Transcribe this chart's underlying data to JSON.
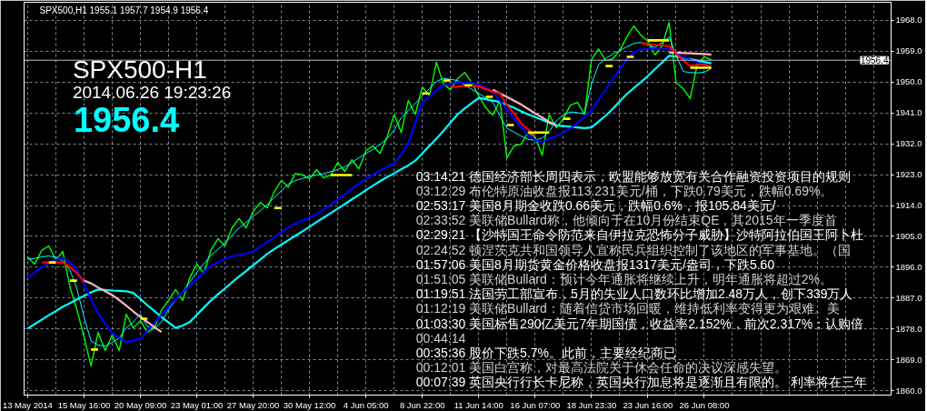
{
  "chart_data": {
    "type": "line",
    "title": "SPX500,H1 1955.1 1957.7 1954.9 1956.4",
    "line_style": "solid",
    "grid": true,
    "categories": [
      "13 May 2014",
      null,
      null,
      null,
      null,
      null,
      null,
      null,
      "15 May 16:00",
      null,
      null,
      null,
      null,
      null,
      null,
      null,
      "20 May 09:00",
      null,
      null,
      null,
      null,
      null,
      null,
      null,
      "23 May 01:00",
      null,
      null,
      null,
      null,
      null,
      null,
      null,
      "27 May 20:00",
      null,
      null,
      null,
      null,
      null,
      null,
      null,
      "30 May 12:00",
      null,
      null,
      null,
      null,
      null,
      null,
      null,
      "4 Jun 05:00",
      null,
      null,
      null,
      null,
      null,
      null,
      null,
      "8 Jun 22:00",
      null,
      null,
      null,
      null,
      null,
      null,
      null,
      "11 Jun 14:00",
      null,
      null,
      null,
      null,
      null,
      null,
      null,
      "16 Jun 07:00",
      null,
      null,
      null,
      null,
      null,
      null,
      null,
      "18 Jun 23:30",
      null,
      null,
      null,
      null,
      null,
      null,
      null,
      "23 Jun 16:00",
      null,
      null,
      null,
      null,
      null,
      null,
      null,
      "26 Jun 08:00",
      null,
      null,
      null,
      null,
      null,
      null,
      null,
      null,
      null,
      null,
      null,
      null,
      null,
      null,
      null,
      null,
      null,
      null,
      null,
      null,
      null,
      null,
      null,
      null,
      null,
      null
    ],
    "ylim": [
      1858.7,
      1973.3
    ],
    "yticks": [
      {
        "value": 1860,
        "label": "1860.0"
      },
      {
        "value": 1869,
        "label": "1869.0"
      },
      {
        "value": 1878,
        "label": "1878.0"
      },
      {
        "value": 1887,
        "label": "1887.0"
      },
      {
        "value": 1896,
        "label": "1896.0"
      },
      {
        "value": 1905,
        "label": "1905.0"
      },
      {
        "value": 1914,
        "label": "1914.0"
      },
      {
        "value": 1923,
        "label": "1923.0"
      },
      {
        "value": 1932,
        "label": "1932.0"
      },
      {
        "value": 1941,
        "label": "1941.0"
      },
      {
        "value": 1950,
        "label": "1950.0"
      },
      {
        "value": 1959,
        "label": "1959.0"
      },
      {
        "value": 1968,
        "label": "1968.0"
      }
    ],
    "ref_lines": [
      {
        "axis": "y",
        "value": 1956.4,
        "label": "1956.4",
        "color": "#b4bcc8",
        "line_style": "solid"
      }
    ],
    "annotations": [
      "SPX500-H1",
      "2014.06.26 19:23:26",
      "1956.4",
      "03:14:21 德国经济部长周四表示，欧盟能够放宽有关合作融资投资项目的规则",
      "03:12:29 布伦特原油收盘报113.231美元/桶，下跌0.79美元，跌幅0.69%。",
      "02:53:17 美国8月期金收跌0.66美元，跌幅0.6%，报105.84美元/",
      "02:33:52 美联储Bullard称，他倾向于在10月份结束QE，其2015年一季度首",
      "02:29:21 【沙特国王命令防范来自伊拉克恐怖分子威胁】沙特阿拉伯国王阿卜杜",
      "02:24:52 顿涅茨克共和国领导人宣称民兵组织控制了该地区的军事基地。（国",
      "01:57:06 美国8月期货黄金价格收盘报1317美元/盎司，下跌5.60",
      "01:51:05 美联储Bullard：预计今年通胀将继续上升，明年通胀将超过2%。",
      "01:19:51 法国劳工部宣布，5月的失业人口数环比增加2.48万人，创下339万人",
      "01:12:19 美联储Bullard：随着信贷市场回暖，维持低利率变得更为艰难。美",
      "01:03:30 美国标售290亿美元7年期国债，收益率2.152%，前次2.317%；认购倍",
      "00:44:14",
      "00:35:36 股价下跌5.7%。此前，主要经纪商已",
      "00:12:01 美国白宫称，对最高法院关于休会任命的决议深感失望。",
      "00:07:39 英国央行行长卡尼称，英国央行加息将是逐渐且有限的。 利率将在三年"
    ],
    "series": [
      {
        "color": "#00ff00",
        "values": [
          1899.0,
          1896.9,
          1900.9,
          1902.2,
          1898.2,
          1900.6,
          1890.3,
          1883.6,
          1875.7,
          1867.2,
          1877.0,
          1871.7,
          1876.2,
          1871.7,
          1882.3,
          1878.3,
          1880.4,
          1877.0,
          1878.3,
          1883.6,
          1886.3,
          1889.5,
          1886.3,
          1892.9,
          1896.9,
          1894.2,
          1900.9,
          1904.3,
          1902.2,
          1907.5,
          1910.2,
          1907.5,
          1912.3,
          1914.9,
          1913.3,
          1918.1,
          1921.3,
          1919.4,
          1923.4,
          1922.9,
          1921.8,
          1924.5,
          1922.1,
          1922.9,
          1926.6,
          1923.9,
          1927.4,
          1924.7,
          1930.0,
          1931.4,
          1929.2,
          1934.0,
          1940.6,
          1935.3,
          1944.6,
          1940.6,
          1948.6,
          1946.0,
          1955.8,
          1949.4,
          1947.8,
          1951.0,
          1952.8,
          1949.9,
          1946.0,
          1942.5,
          1940.4,
          1944.6,
          1927.9,
          1931.4,
          1931.9,
          1935.3,
          1934.0,
          1928.7,
          1940.6,
          1936.7,
          1939.3,
          1943.3,
          1944.1,
          1940.6,
          1956.6,
          1959.7,
          1956.3,
          1956.8,
          1959.2,
          1963.2,
          1966.4,
          1963.7,
          1961.9,
          1957.9,
          1960.5,
          1967.4,
          1949.9,
          1948.1,
          1945.2,
          1955.2,
          1957.4,
          1956.4,
          null,
          null,
          null,
          null,
          null,
          null,
          null,
          null,
          null,
          null,
          null,
          null,
          null,
          null,
          null,
          null,
          null,
          null,
          null,
          null,
          null,
          null,
          null,
          null,
          null
        ]
      },
      {
        "color": "#00ffff",
        "values": [
          1898.3,
          1898.6,
          1899.0,
          1899.3,
          1898.9,
          1897.8,
          1895.2,
          1889.7,
          1881.4,
          1874.5,
          1873.3,
          1873.0,
          1874.1,
          1875.3,
          1878.3,
          1880.1,
          1882.3,
          1878.7,
          1878.1,
          1880.1,
          1883.7,
          1886.5,
          1888.9,
          1891.6,
          1894.5,
          1897.0,
          1899.5,
          1901.2,
          1903.0,
          1905.3,
          1907.4,
          1909.1,
          1910.8,
          1912.5,
          1914.3,
          1916.4,
          1918.3,
          1920.3,
          1921.3,
          1921.9,
          1922.5,
          1922.9,
          1923.3,
          1923.9,
          1924.5,
          1925.3,
          1926.6,
          1927.9,
          1929.2,
          1930.4,
          1931.8,
          1933.5,
          1936.0,
          1939.6,
          1941.7,
          1943.8,
          1946.0,
          1948.1,
          1950.2,
          1951.1,
          1950.8,
          1950.5,
          1949.2,
          1947.9,
          1946.7,
          1945.4,
          1944.1,
          1940.1,
          1936.6,
          1935.4,
          1934.3,
          1933.3,
          1933.0,
          1933.7,
          1935.6,
          1938.7,
          1940.4,
          1941.3,
          1941.1,
          1940.7,
          1949.5,
          1955.1,
          1956.9,
          1958.2,
          1959.2,
          1960.3,
          1961.3,
          1961.6,
          1960.9,
          1960.1,
          1961.5,
          1963.2,
          1957.9,
          1953.1,
          1952.8,
          1952.7,
          1952.9,
          1954.0,
          null,
          null,
          null,
          null,
          null,
          null,
          null,
          null,
          null,
          null,
          null,
          null,
          null,
          null,
          null,
          null,
          null,
          null,
          null,
          null,
          null,
          null,
          null,
          null,
          null
        ]
      },
      {
        "color": "#00ffff",
        "values": [
          1878.1,
          1879.4,
          1880.7,
          1882.0,
          1883.2,
          1884.5,
          1885.5,
          1886.6,
          1887.6,
          1888.7,
          1889.5,
          1889.4,
          1889.2,
          1889.1,
          1889.0,
          1888.5,
          1886.7,
          1884.9,
          1883.2,
          1881.5,
          1879.9,
          1878.3,
          1879.0,
          1880.0,
          1882.1,
          1884.2,
          1886.3,
          1888.1,
          1889.8,
          1891.6,
          1893.3,
          1894.9,
          1896.6,
          1898.2,
          1899.9,
          1901.3,
          1902.6,
          1903.9,
          1905.2,
          1906.5,
          1907.8,
          1909.2,
          1910.5,
          1911.8,
          1913.1,
          1914.4,
          1915.8,
          1917.1,
          1918.5,
          1919.8,
          1921.1,
          1922.3,
          1923.4,
          1924.6,
          1925.7,
          1927.1,
          1929.2,
          1931.4,
          1933.5,
          1935.8,
          1938.2,
          1940.6,
          1942.3,
          1943.9,
          1945.4,
          1945.0,
          1944.6,
          1944.2,
          1943.4,
          1942.5,
          1941.5,
          1940.6,
          1939.8,
          1939.0,
          1938.1,
          1937.4,
          1937.2,
          1937.0,
          1936.8,
          1936.6,
          1936.8,
          1938.5,
          1940.2,
          1942.2,
          1944.4,
          1946.5,
          1948.3,
          1950.0,
          1951.8,
          1953.8,
          1955.7,
          1957.7,
          1957.5,
          1957.1,
          1956.7,
          1956.3,
          1955.9,
          1955.5,
          null,
          null,
          null,
          null,
          null,
          null,
          null,
          null,
          null,
          null,
          null,
          null,
          null,
          null,
          null,
          null,
          null,
          null,
          null,
          null,
          null,
          null,
          null,
          null,
          null
        ]
      },
      {
        "color": "#0000ff",
        "values": [
          1893.0,
          1894.5,
          1896.0,
          1897.2,
          1898.2,
          1898.7,
          1897.6,
          1895.3,
          1891.0,
          1886.8,
          1882.6,
          1879.4,
          1876.8,
          1875.4,
          1874.2,
          1874.6,
          1875.1,
          1877.5,
          1879.8,
          1882.2,
          1884.5,
          1886.8,
          1888.7,
          1890.6,
          1892.6,
          1894.5,
          1896.4,
          1897.4,
          1898.5,
          1899.2,
          1899.6,
          1900.0,
          1900.6,
          1902.0,
          1903.3,
          1904.7,
          1906.2,
          1907.6,
          1908.7,
          1909.6,
          1910.5,
          1911.5,
          1912.8,
          1914.3,
          1915.7,
          1917.2,
          1918.8,
          1920.4,
          1921.7,
          1923.0,
          1924.2,
          1925.3,
          1926.3,
          1928.8,
          1932.1,
          1938.1,
          1944.1,
          1945.8,
          1947.6,
          1949.1,
          1949.5,
          1949.9,
          1949.9,
          1949.9,
          1949.4,
          1948.3,
          1947.3,
          1944.6,
          1941.9,
          1939.4,
          1937.0,
          1934.6,
          1933.1,
          1932.5,
          1933.4,
          1934.3,
          1935.4,
          1936.4,
          1938.1,
          1939.8,
          1941.9,
          1944.9,
          1947.9,
          1950.8,
          1953.7,
          1956.6,
          1958.7,
          1959.5,
          1959.7,
          1959.7,
          1959.7,
          1959.7,
          1958.7,
          1957.3,
          1956.5,
          1955.7,
          1954.8,
          1953.9,
          null,
          null,
          null,
          null,
          null,
          null,
          null,
          null,
          null,
          null,
          null,
          null,
          null,
          null,
          null,
          null,
          null,
          null,
          null,
          null,
          null,
          null,
          null,
          null,
          null
        ]
      },
      {
        "color": "#ffb6c1",
        "values": [
          null,
          null,
          null,
          null,
          null,
          null,
          null,
          null,
          1892.1,
          1891.3,
          1890.1,
          1889.0,
          1887.9,
          1886.4,
          1884.8,
          1883.1,
          1881.5,
          1880.0,
          1878.5,
          1877.1,
          null,
          null,
          null,
          null,
          null,
          null,
          null,
          null,
          null,
          null,
          null,
          null,
          null,
          null,
          null,
          null,
          null,
          null,
          null,
          null,
          null,
          null,
          null,
          null,
          null,
          null,
          null,
          null,
          null,
          null,
          null,
          null,
          null,
          null,
          null,
          null,
          null,
          null,
          null,
          null,
          null,
          null,
          null,
          null,
          null,
          null,
          1947.8,
          1946.7,
          1945.7,
          1944.6,
          1943.5,
          1942.2,
          1940.9,
          1939.7,
          1938.4,
          1937.5,
          null,
          null,
          null,
          null,
          null,
          null,
          null,
          null,
          null,
          null,
          null,
          null,
          null,
          null,
          null,
          1958.6,
          1958.6,
          1958.5,
          1958.4,
          1958.3,
          1958.2,
          1958.0,
          null,
          null,
          null,
          null,
          null,
          null,
          null,
          null,
          null,
          null,
          null,
          null,
          null,
          null,
          null,
          null,
          null,
          null,
          null,
          null,
          null,
          null,
          null,
          null,
          null
        ]
      },
      {
        "color": "#ff0000",
        "values": [
          null,
          null,
          1897.4,
          1897.4,
          1897.4,
          1897.4,
          1896.1,
          1894.3,
          1891.7,
          null,
          null,
          null,
          null,
          null,
          null,
          null,
          null,
          null,
          null,
          null,
          null,
          null,
          null,
          null,
          null,
          null,
          null,
          null,
          null,
          null,
          null,
          null,
          null,
          null,
          null,
          null,
          null,
          null,
          null,
          null,
          null,
          null,
          null,
          null,
          null,
          null,
          null,
          null,
          null,
          null,
          null,
          null,
          null,
          null,
          null,
          null,
          null,
          null,
          null,
          null,
          1948.6,
          1948.7,
          1948.9,
          1949.0,
          1948.8,
          1948.0,
          1947.2,
          1946.7,
          1943.3,
          1940.9,
          1938.0,
          1936.2,
          1934.4,
          null,
          null,
          null,
          null,
          null,
          null,
          null,
          null,
          null,
          null,
          null,
          null,
          null,
          null,
          1961.4,
          1961.2,
          1960.9,
          1960.7,
          1960.5,
          1958.4,
          1956.4,
          1954.7,
          1955.0,
          1955.2,
          1954.5,
          null,
          null,
          null,
          null,
          null,
          null,
          null,
          null,
          null,
          null,
          null,
          null,
          null,
          null,
          null,
          null,
          null,
          null,
          null,
          null,
          null,
          null,
          null,
          null,
          null
        ]
      },
      {
        "color": "#ffff00",
        "values": [
          null,
          null,
          null,
          1897.4,
          1897.4,
          null,
          1892.1,
          1892.1,
          null,
          1872.0,
          1872.0,
          null,
          null,
          null,
          null,
          null,
          1881.0,
          1881.0,
          null,
          null,
          null,
          null,
          null,
          null,
          null,
          null,
          null,
          null,
          null,
          null,
          null,
          null,
          null,
          null,
          null,
          1913.3,
          1913.3,
          null,
          null,
          null,
          null,
          null,
          null,
          1922.9,
          1922.9,
          1922.9,
          1922.9,
          null,
          null,
          null,
          null,
          null,
          null,
          null,
          null,
          null,
          1946.7,
          1946.7,
          null,
          1950.5,
          1950.5,
          null,
          1949.1,
          1949.1,
          null,
          1945.7,
          1945.7,
          null,
          1937.5,
          1937.5,
          null,
          1935.3,
          1935.3,
          1935.3,
          1935.3,
          null,
          1939.3,
          1939.3,
          null,
          null,
          null,
          null,
          1954.7,
          1954.7,
          null,
          1957.4,
          1957.4,
          null,
          1962.2,
          1962.2,
          1962.2,
          1962.2,
          null,
          null,
          1954.2,
          1954.2,
          1954.2,
          1954.2,
          null,
          null,
          null,
          null,
          null,
          null,
          null,
          null,
          null,
          null,
          null,
          null,
          null,
          null,
          null,
          null,
          null,
          null,
          null,
          null,
          null,
          null,
          null,
          null,
          null
        ]
      }
    ]
  }
}
